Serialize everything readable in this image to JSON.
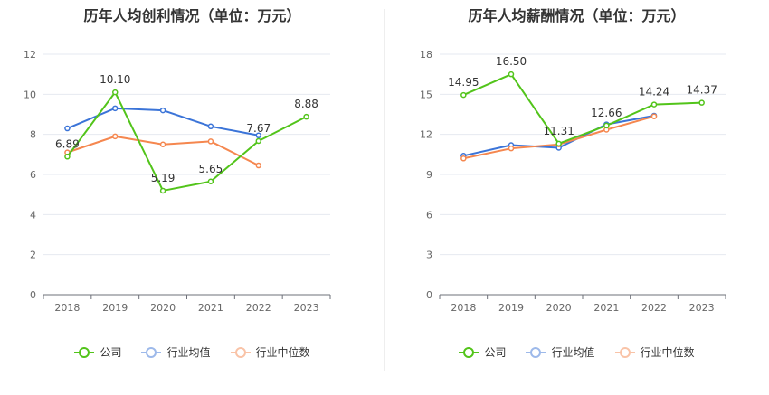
{
  "chart_data": [
    {
      "type": "line",
      "title": "历年人均创利情况（单位：万元）",
      "categories": [
        "2018",
        "2019",
        "2020",
        "2021",
        "2022",
        "2023"
      ],
      "ylim": [
        0,
        12
      ],
      "yticks": [
        "0",
        "2",
        "4",
        "6",
        "8",
        "10",
        "12"
      ],
      "grid": true,
      "legend": "bottom-center",
      "series": [
        {
          "name": "公司",
          "color": "#52c41a",
          "values": [
            6.89,
            10.1,
            5.19,
            5.65,
            7.67,
            8.88
          ],
          "labels": [
            "6.89",
            "10.10",
            "5.19",
            "5.65",
            "7.67",
            "8.88"
          ]
        },
        {
          "name": "行业均值",
          "color": "#3b74d8",
          "values": [
            8.3,
            9.3,
            9.2,
            8.4,
            7.95,
            null
          ]
        },
        {
          "name": "行业中位数",
          "color": "#f5874f",
          "values": [
            7.1,
            7.9,
            7.5,
            7.65,
            6.45,
            null
          ]
        }
      ]
    },
    {
      "type": "line",
      "title": "历年人均薪酬情况（单位：万元）",
      "categories": [
        "2018",
        "2019",
        "2020",
        "2021",
        "2022",
        "2023"
      ],
      "ylim": [
        0,
        18
      ],
      "yticks": [
        "0",
        "3",
        "6",
        "9",
        "12",
        "15",
        "18"
      ],
      "grid": true,
      "legend": "bottom-center",
      "series": [
        {
          "name": "公司",
          "color": "#52c41a",
          "values": [
            14.95,
            16.5,
            11.31,
            12.66,
            14.24,
            14.37
          ],
          "labels": [
            "14.95",
            "16.50",
            "11.31",
            "12.66",
            "14.24",
            "14.37"
          ]
        },
        {
          "name": "行业均值",
          "color": "#3b74d8",
          "values": [
            10.4,
            11.2,
            11.0,
            12.75,
            13.4,
            null
          ]
        },
        {
          "name": "行业中位数",
          "color": "#f5874f",
          "values": [
            10.2,
            10.95,
            11.25,
            12.35,
            13.35,
            null
          ]
        }
      ]
    }
  ]
}
